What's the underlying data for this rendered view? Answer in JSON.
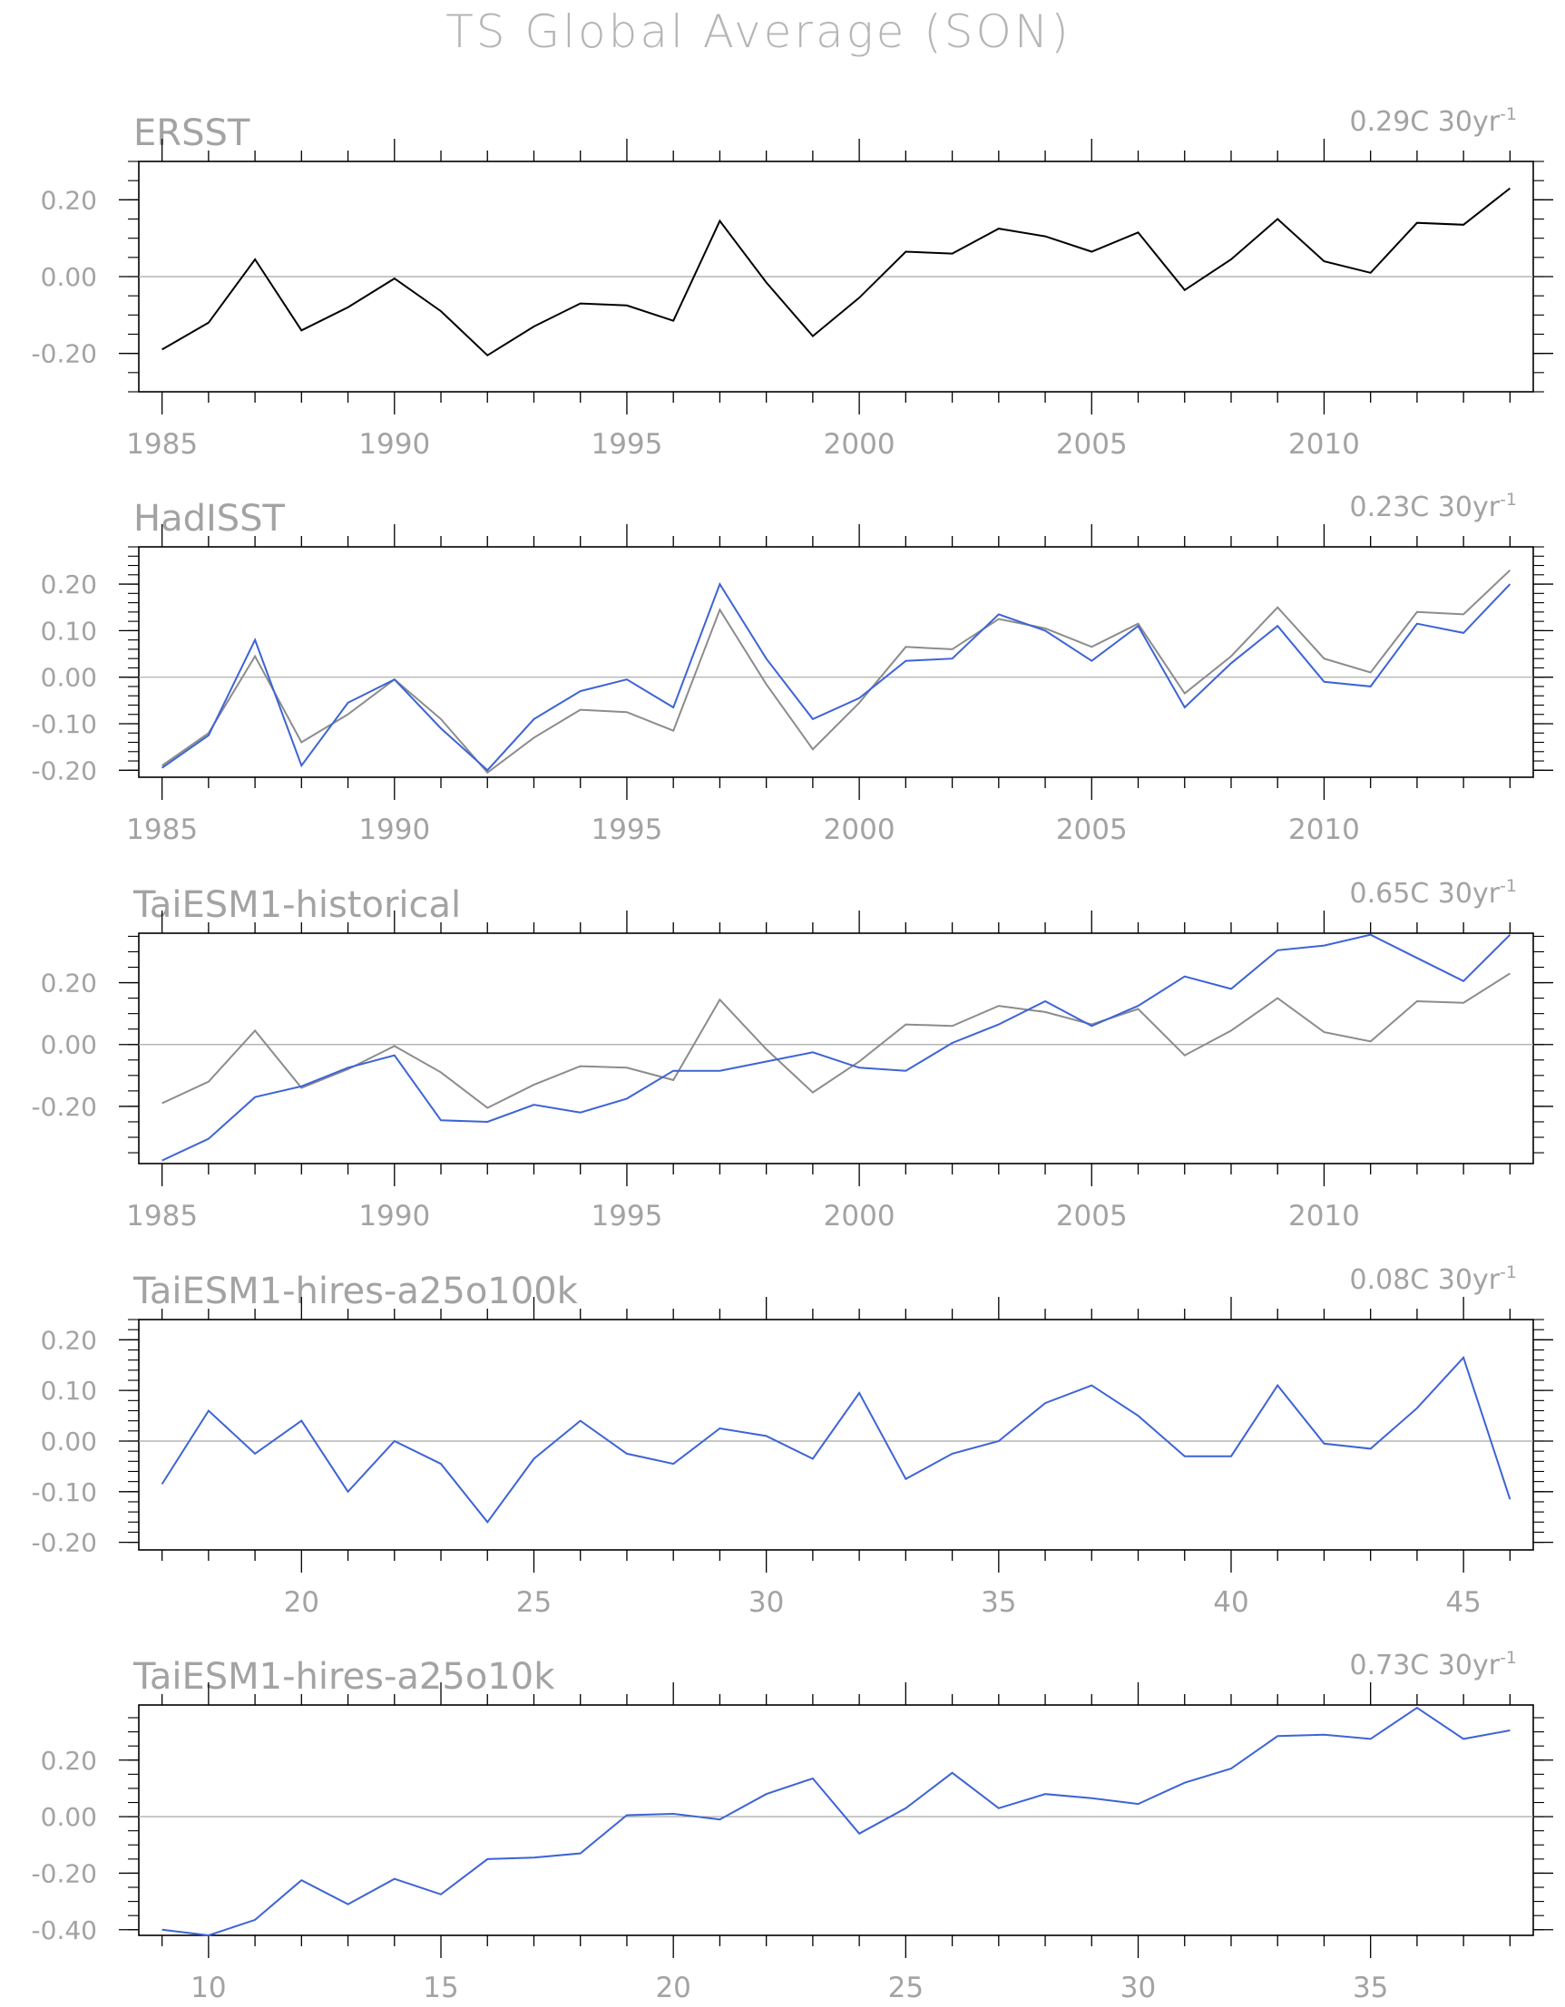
{
  "figure": {
    "title": "TS Global Average (SON)"
  },
  "colors": {
    "reference_line": "#000000",
    "model_line": "#3d63d6",
    "obs_overlay_line": "#8c8c8c",
    "zero_line": "#a8a8a8",
    "frame": "#000000",
    "text": "#a3a3a3"
  },
  "chart_data": [
    {
      "type": "line",
      "title": "ERSST",
      "trend_value": "0.29C",
      "trend_unit": "30yr",
      "trend_exp": "-1",
      "xlim": [
        1984.5,
        2014.5
      ],
      "ylim": [
        -0.3,
        0.3
      ],
      "x_ticks": [
        1985,
        1990,
        1995,
        2000,
        2005,
        2010
      ],
      "x_tick_labels": [
        "1985",
        "1990",
        "1995",
        "2000",
        "2005",
        "2010"
      ],
      "y_ticks": [
        -0.2,
        0.0,
        0.2
      ],
      "y_tick_labels": [
        "-0.20",
        "0.00",
        "0.20"
      ],
      "y_minor": 0.05,
      "x": [
        1985,
        1986,
        1987,
        1988,
        1989,
        1990,
        1991,
        1992,
        1993,
        1994,
        1995,
        1996,
        1997,
        1998,
        1999,
        2000,
        2001,
        2002,
        2003,
        2004,
        2005,
        2006,
        2007,
        2008,
        2009,
        2010,
        2011,
        2012,
        2013,
        2014
      ],
      "series": [
        {
          "role": "reference",
          "values": [
            -0.19,
            -0.12,
            0.045,
            -0.14,
            -0.08,
            -0.005,
            -0.09,
            -0.205,
            -0.13,
            -0.07,
            -0.075,
            -0.115,
            0.145,
            -0.015,
            -0.155,
            -0.055,
            0.065,
            0.06,
            0.125,
            0.105,
            0.065,
            0.115,
            -0.035,
            0.045,
            0.15,
            0.04,
            0.01,
            0.14,
            0.135,
            0.23
          ]
        }
      ]
    },
    {
      "type": "line",
      "title": "HadISST",
      "trend_value": "0.23C",
      "trend_unit": "30yr",
      "trend_exp": "-1",
      "xlim": [
        1984.5,
        2014.5
      ],
      "ylim": [
        -0.215,
        0.28
      ],
      "x_ticks": [
        1985,
        1990,
        1995,
        2000,
        2005,
        2010
      ],
      "x_tick_labels": [
        "1985",
        "1990",
        "1995",
        "2000",
        "2005",
        "2010"
      ],
      "y_ticks": [
        -0.2,
        -0.1,
        0.0,
        0.1,
        0.2
      ],
      "y_tick_labels": [
        "-0.20",
        "-0.10",
        "0.00",
        "0.10",
        "0.20"
      ],
      "y_minor": 0.02,
      "x": [
        1985,
        1986,
        1987,
        1988,
        1989,
        1990,
        1991,
        1992,
        1993,
        1994,
        1995,
        1996,
        1997,
        1998,
        1999,
        2000,
        2001,
        2002,
        2003,
        2004,
        2005,
        2006,
        2007,
        2008,
        2009,
        2010,
        2011,
        2012,
        2013,
        2014
      ],
      "series": [
        {
          "role": "overlay",
          "values": [
            -0.19,
            -0.12,
            0.045,
            -0.14,
            -0.08,
            -0.005,
            -0.09,
            -0.205,
            -0.13,
            -0.07,
            -0.075,
            -0.115,
            0.145,
            -0.015,
            -0.155,
            -0.055,
            0.065,
            0.06,
            0.125,
            0.105,
            0.065,
            0.115,
            -0.035,
            0.045,
            0.15,
            0.04,
            0.01,
            0.14,
            0.135,
            0.23
          ]
        },
        {
          "role": "main",
          "values": [
            -0.195,
            -0.125,
            0.08,
            -0.19,
            -0.055,
            -0.005,
            -0.11,
            -0.2,
            -0.09,
            -0.03,
            -0.005,
            -0.065,
            0.2,
            0.04,
            -0.09,
            -0.045,
            0.035,
            0.04,
            0.135,
            0.1,
            0.035,
            0.11,
            -0.065,
            0.03,
            0.11,
            -0.01,
            -0.02,
            0.115,
            0.095,
            0.2
          ]
        }
      ]
    },
    {
      "type": "line",
      "title": "TaiESM1-historical",
      "trend_value": "0.65C",
      "trend_unit": "30yr",
      "trend_exp": "-1",
      "xlim": [
        1984.5,
        2014.5
      ],
      "ylim": [
        -0.385,
        0.36
      ],
      "x_ticks": [
        1985,
        1990,
        1995,
        2000,
        2005,
        2010
      ],
      "x_tick_labels": [
        "1985",
        "1990",
        "1995",
        "2000",
        "2005",
        "2010"
      ],
      "y_ticks": [
        -0.2,
        0.0,
        0.2
      ],
      "y_tick_labels": [
        "-0.20",
        "0.00",
        "0.20"
      ],
      "y_minor": 0.05,
      "x": [
        1985,
        1986,
        1987,
        1988,
        1989,
        1990,
        1991,
        1992,
        1993,
        1994,
        1995,
        1996,
        1997,
        1998,
        1999,
        2000,
        2001,
        2002,
        2003,
        2004,
        2005,
        2006,
        2007,
        2008,
        2009,
        2010,
        2011,
        2012,
        2013,
        2014
      ],
      "series": [
        {
          "role": "overlay",
          "values": [
            -0.19,
            -0.12,
            0.045,
            -0.14,
            -0.08,
            -0.005,
            -0.09,
            -0.205,
            -0.13,
            -0.07,
            -0.075,
            -0.115,
            0.145,
            -0.015,
            -0.155,
            -0.055,
            0.065,
            0.06,
            0.125,
            0.105,
            0.065,
            0.115,
            -0.035,
            0.045,
            0.15,
            0.04,
            0.01,
            0.14,
            0.135,
            0.23
          ]
        },
        {
          "role": "main",
          "values": [
            -0.375,
            -0.305,
            -0.17,
            -0.135,
            -0.075,
            -0.035,
            -0.245,
            -0.25,
            -0.195,
            -0.22,
            -0.175,
            -0.085,
            -0.085,
            -0.055,
            -0.025,
            -0.075,
            -0.085,
            0.005,
            0.065,
            0.14,
            0.06,
            0.125,
            0.22,
            0.18,
            0.305,
            0.32,
            0.355,
            0.28,
            0.205,
            0.355
          ]
        }
      ]
    },
    {
      "type": "line",
      "title": "TaiESM1-hires-a25o100k",
      "trend_value": "0.08C",
      "trend_unit": "30yr",
      "trend_exp": "-1",
      "xlim": [
        16.5,
        46.5
      ],
      "ylim": [
        -0.215,
        0.24
      ],
      "x_ticks": [
        20,
        25,
        30,
        35,
        40,
        45
      ],
      "x_tick_labels": [
        "20",
        "25",
        "30",
        "35",
        "40",
        "45"
      ],
      "y_ticks": [
        -0.2,
        -0.1,
        0.0,
        0.1,
        0.2
      ],
      "y_tick_labels": [
        "-0.20",
        "-0.10",
        "0.00",
        "0.10",
        "0.20"
      ],
      "y_minor": 0.02,
      "x": [
        17,
        18,
        19,
        20,
        21,
        22,
        23,
        24,
        25,
        26,
        27,
        28,
        29,
        30,
        31,
        32,
        33,
        34,
        35,
        36,
        37,
        38,
        39,
        40,
        41,
        42,
        43,
        44,
        45,
        46
      ],
      "series": [
        {
          "role": "main",
          "values": [
            -0.085,
            0.06,
            -0.025,
            0.04,
            -0.1,
            0.0,
            -0.045,
            -0.16,
            -0.035,
            0.04,
            -0.025,
            -0.045,
            0.025,
            0.01,
            -0.035,
            0.095,
            -0.075,
            -0.025,
            0.0,
            0.075,
            0.11,
            0.05,
            -0.03,
            -0.03,
            0.11,
            -0.005,
            -0.015,
            0.065,
            0.165,
            -0.115
          ]
        }
      ]
    },
    {
      "type": "line",
      "title": "TaiESM1-hires-a25o10k",
      "trend_value": "0.73C",
      "trend_unit": "30yr",
      "trend_exp": "-1",
      "xlim": [
        8.5,
        38.5
      ],
      "ylim": [
        -0.42,
        0.395
      ],
      "x_ticks": [
        10,
        15,
        20,
        25,
        30,
        35
      ],
      "x_tick_labels": [
        "10",
        "15",
        "20",
        "25",
        "30",
        "35"
      ],
      "y_ticks": [
        -0.4,
        -0.2,
        0.0,
        0.2
      ],
      "y_tick_labels": [
        "-0.40",
        "-0.20",
        "0.00",
        "0.20"
      ],
      "y_minor": 0.05,
      "x": [
        9,
        10,
        11,
        12,
        13,
        14,
        15,
        16,
        17,
        18,
        19,
        20,
        21,
        22,
        23,
        24,
        25,
        26,
        27,
        28,
        29,
        30,
        31,
        32,
        33,
        34,
        35,
        36,
        37,
        38
      ],
      "series": [
        {
          "role": "main",
          "values": [
            -0.4,
            -0.42,
            -0.365,
            -0.225,
            -0.31,
            -0.22,
            -0.275,
            -0.15,
            -0.145,
            -0.13,
            0.005,
            0.01,
            -0.01,
            0.08,
            0.135,
            -0.06,
            0.03,
            0.155,
            0.03,
            0.08,
            0.065,
            0.045,
            0.12,
            0.17,
            0.285,
            0.29,
            0.275,
            0.385,
            0.275,
            0.305
          ]
        }
      ]
    }
  ]
}
